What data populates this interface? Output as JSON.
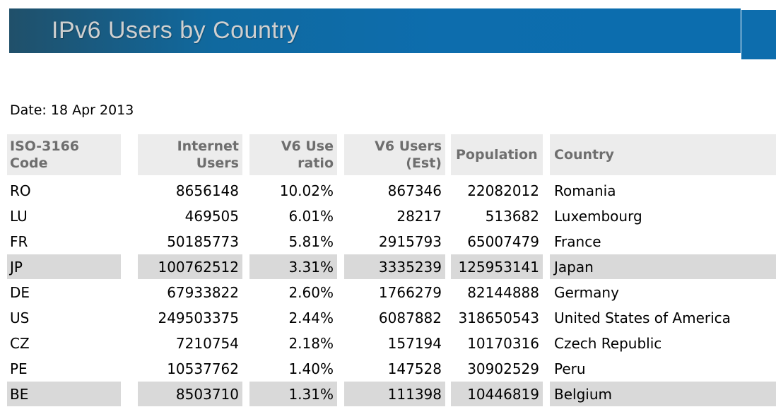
{
  "header": {
    "title": "IPv6 Users by Country",
    "bar_color": "#0d6dad",
    "bar_gradient_dark": "#20506a",
    "title_color": "#cfcfcf"
  },
  "date_line": "Date: 18 Apr 2013",
  "table": {
    "header_bg": "#ececec",
    "header_text_color": "#6e6e6e",
    "stripe_bg": "#d9d9d9",
    "columns": [
      {
        "label": "ISO-3166\nCode",
        "align": "left"
      },
      {
        "label": "Internet\nUsers",
        "align": "right"
      },
      {
        "label": "V6 Use\nratio",
        "align": "right"
      },
      {
        "label": "V6 Users\n(Est)",
        "align": "right"
      },
      {
        "label": "Population",
        "align": "left"
      },
      {
        "label": "Country",
        "align": "left"
      }
    ],
    "rows": [
      {
        "code": "RO",
        "internet_users": "8656148",
        "v6_use_ratio": "10.02%",
        "v6_users_est": "867346",
        "population": "22082012",
        "country": "Romania",
        "highlighted": false
      },
      {
        "code": "LU",
        "internet_users": "469505",
        "v6_use_ratio": "6.01%",
        "v6_users_est": "28217",
        "population": "513682",
        "country": "Luxembourg",
        "highlighted": false
      },
      {
        "code": "FR",
        "internet_users": "50185773",
        "v6_use_ratio": "5.81%",
        "v6_users_est": "2915793",
        "population": "65007479",
        "country": "France",
        "highlighted": false
      },
      {
        "code": "JP",
        "internet_users": "100762512",
        "v6_use_ratio": "3.31%",
        "v6_users_est": "3335239",
        "population": "125953141",
        "country": "Japan",
        "highlighted": true
      },
      {
        "code": "DE",
        "internet_users": "67933822",
        "v6_use_ratio": "2.60%",
        "v6_users_est": "1766279",
        "population": "82144888",
        "country": "Germany",
        "highlighted": false
      },
      {
        "code": "US",
        "internet_users": "249503375",
        "v6_use_ratio": "2.44%",
        "v6_users_est": "6087882",
        "population": "318650543",
        "country": "United States of America",
        "highlighted": false
      },
      {
        "code": "CZ",
        "internet_users": "7210754",
        "v6_use_ratio": "2.18%",
        "v6_users_est": "157194",
        "population": "10170316",
        "country": "Czech Republic",
        "highlighted": false
      },
      {
        "code": "PE",
        "internet_users": "10537762",
        "v6_use_ratio": "1.40%",
        "v6_users_est": "147528",
        "population": "30902529",
        "country": "Peru",
        "highlighted": false
      },
      {
        "code": "BE",
        "internet_users": "8503710",
        "v6_use_ratio": "1.31%",
        "v6_users_est": "111398",
        "population": "10446819",
        "country": "Belgium",
        "highlighted": true
      }
    ]
  }
}
